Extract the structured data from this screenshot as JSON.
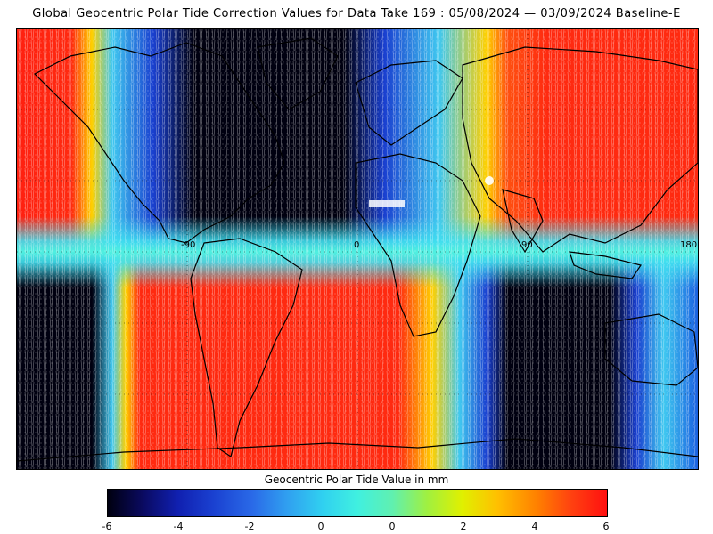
{
  "title": "Global Geocentric Polar Tide Correction Values for Data Take 169 : 05/08/2024 — 03/09/2024 Baseline-E",
  "map": {
    "lon_labels": [
      "-90",
      "0",
      "90",
      "180"
    ],
    "colors": {
      "neg6": "#000010",
      "neg4": "#1030c0",
      "neg2": "#2f7cf0",
      "zero": "#30e0f0",
      "pos2": "#b0f020",
      "pos3": "#ffc000",
      "pos4": "#ff7000",
      "pos6": "#ff1010",
      "land": "#000000",
      "track": "#ffffff"
    }
  },
  "legend": {
    "title": "Geocentric Polar Tide Value in mm",
    "ticks": [
      "-6",
      "-4",
      "-2",
      "0",
      "0",
      "2",
      "4",
      "6"
    ]
  }
}
